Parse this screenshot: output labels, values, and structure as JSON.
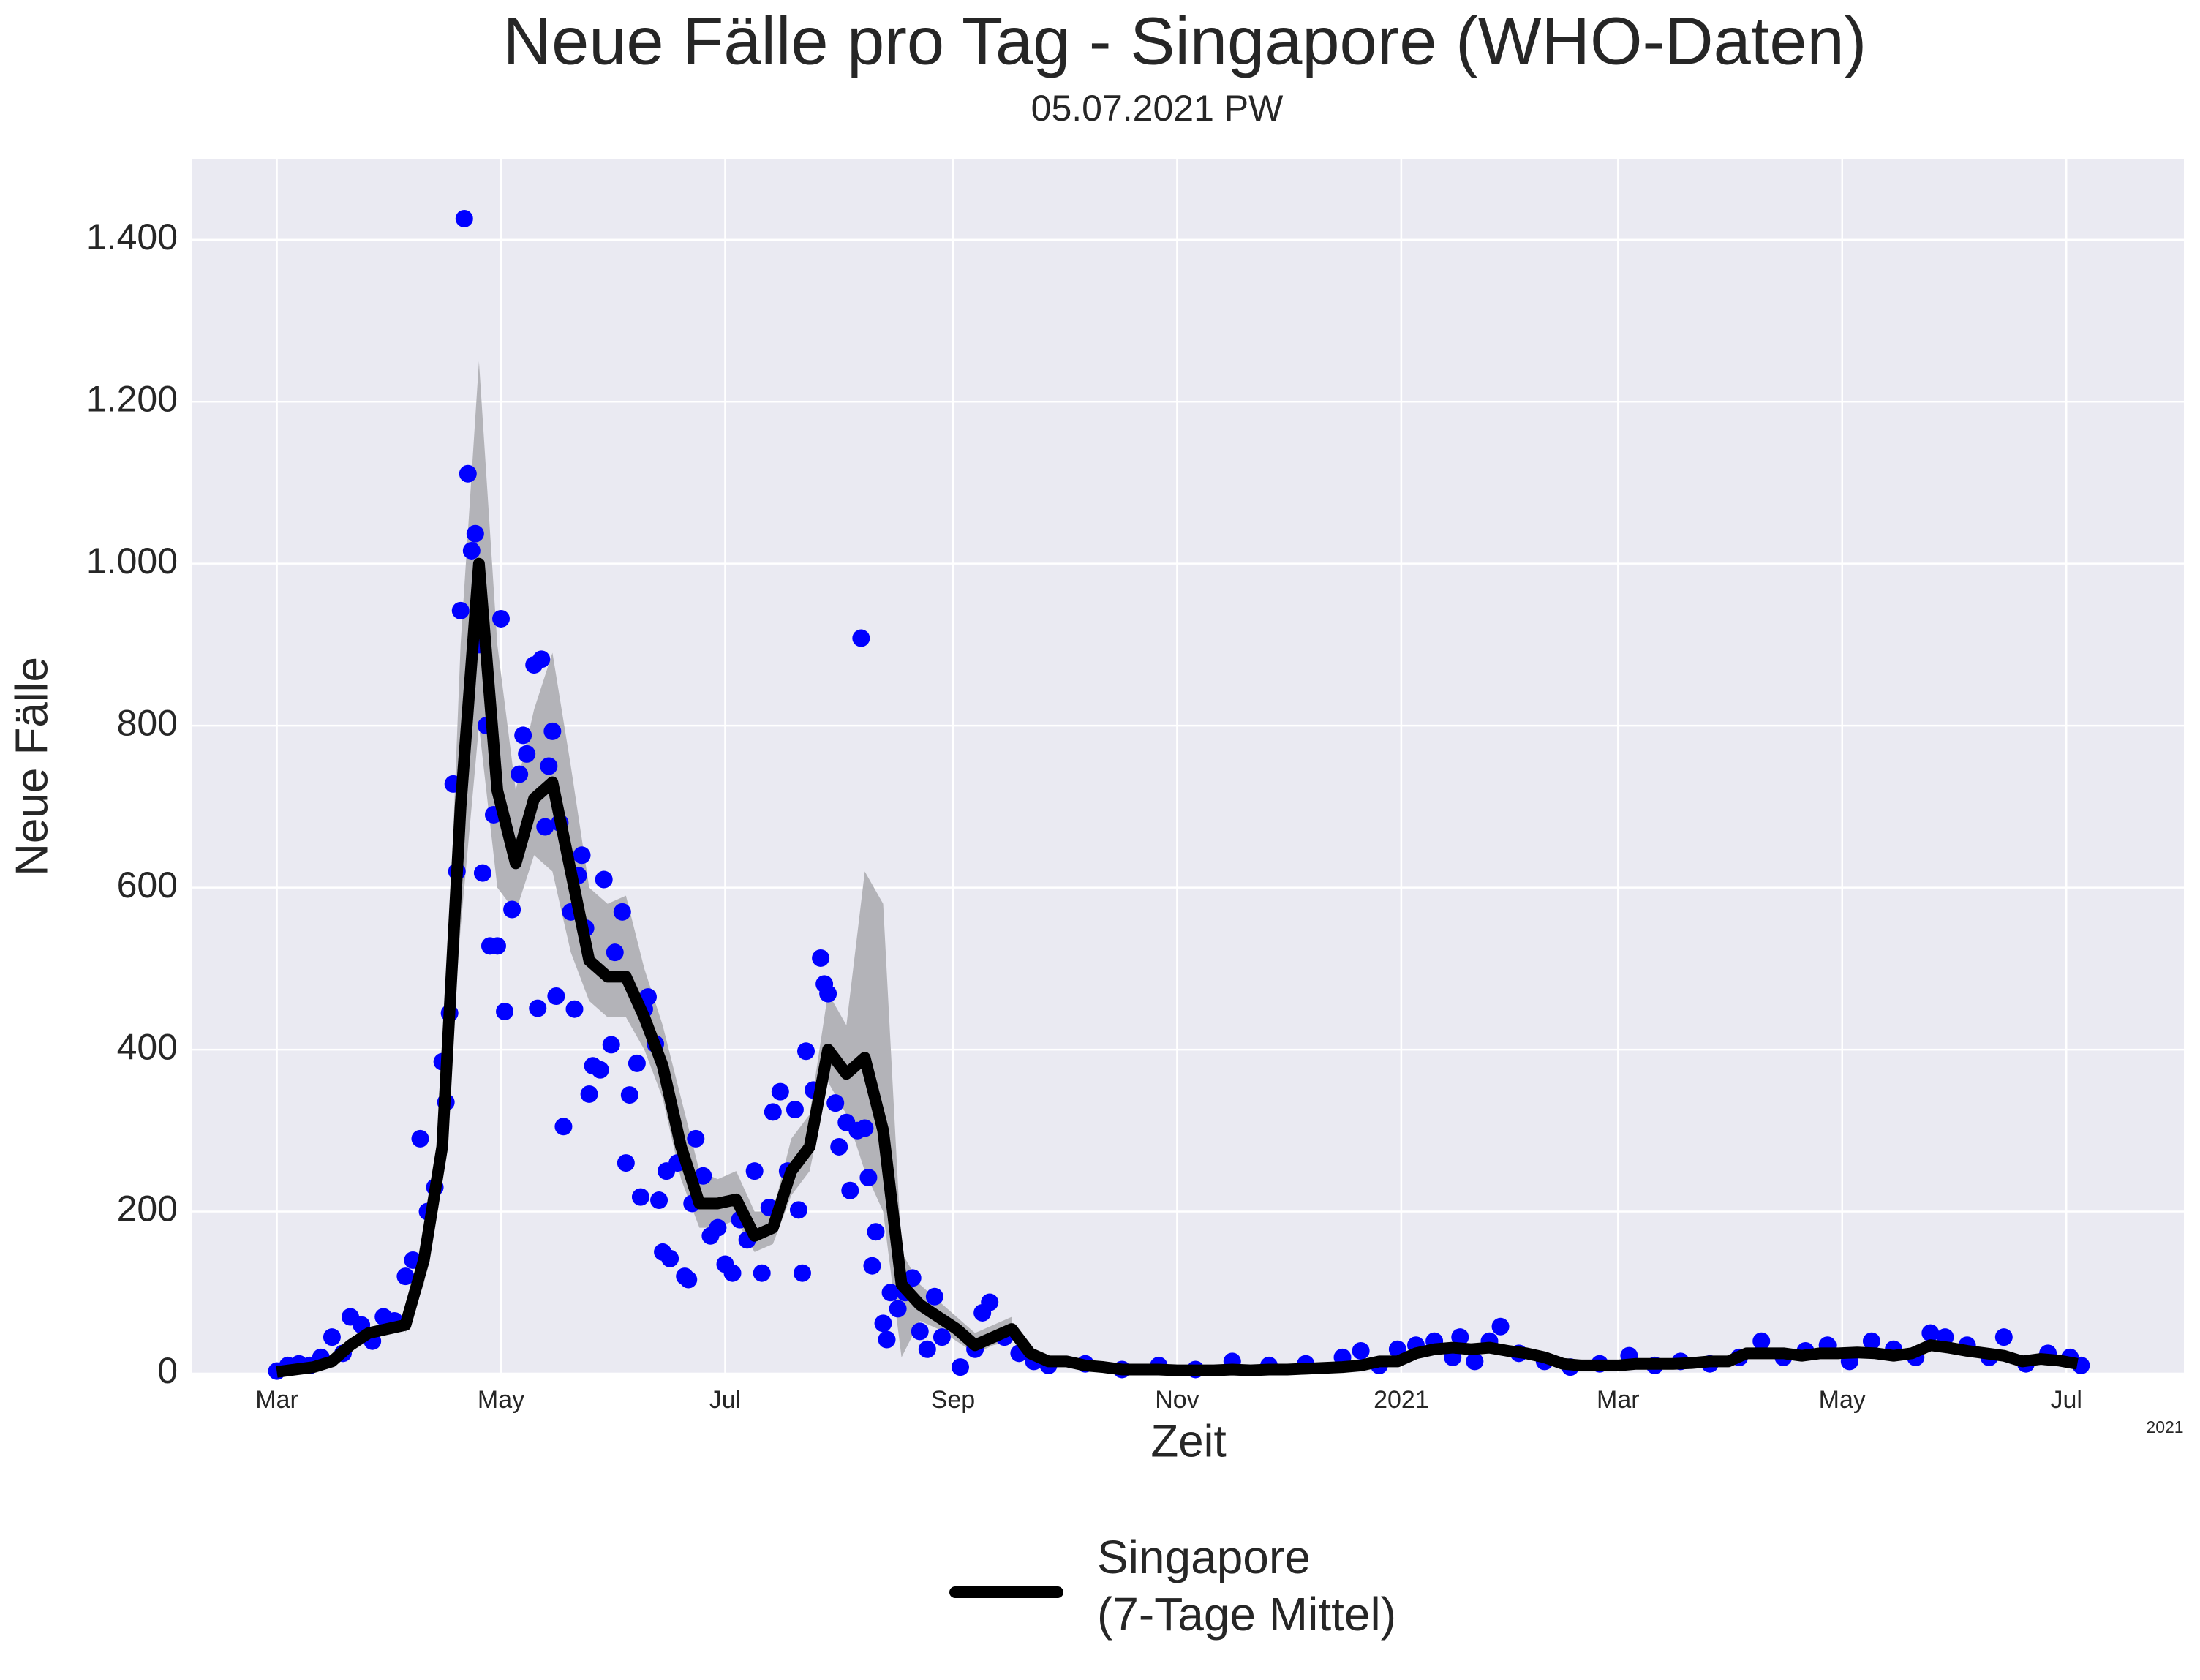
{
  "chart_data": {
    "type": "scatter-line",
    "title": "Neue Fälle pro Tag - Singapore (WHO-Daten)",
    "subtitle": "05.07.2021 PW",
    "x_label": "Zeit",
    "y_label": "Neue Fälle",
    "x_offset_label": "2021",
    "background": "#eaeaf2",
    "grid": true,
    "legend": "bottom",
    "xlim": [
      -23,
      519
    ],
    "xticks": [
      {
        "value": 0,
        "label": "Mar"
      },
      {
        "value": 61,
        "label": "May"
      },
      {
        "value": 122,
        "label": "Jul"
      },
      {
        "value": 184,
        "label": "Sep"
      },
      {
        "value": 245,
        "label": "Nov"
      },
      {
        "value": 306,
        "label": "2021"
      },
      {
        "value": 365,
        "label": "Mar"
      },
      {
        "value": 426,
        "label": "May"
      },
      {
        "value": 487,
        "label": "Jul"
      }
    ],
    "ylim": [
      0,
      1500
    ],
    "yticks": [
      0,
      200,
      400,
      600,
      800,
      {
        "value": 1000,
        "label": "1.000"
      },
      {
        "value": 1200,
        "label": "1.200"
      },
      {
        "value": 1400,
        "label": "1.400"
      }
    ],
    "band": {
      "color": "#b3b3b8",
      "x": [
        35,
        40,
        45,
        50,
        55,
        60,
        65,
        70,
        75,
        80,
        85,
        90,
        95,
        100,
        105,
        110,
        115,
        120,
        125,
        130,
        135,
        140,
        145,
        150,
        155,
        160,
        165,
        170,
        175,
        180,
        185,
        190,
        195,
        200
      ],
      "lower": [
        50,
        110,
        240,
        550,
        800,
        600,
        570,
        640,
        620,
        520,
        460,
        440,
        440,
        400,
        340,
        240,
        180,
        180,
        190,
        150,
        160,
        220,
        250,
        360,
        320,
        250,
        200,
        20,
        65,
        55,
        40,
        25,
        35,
        40
      ],
      "upper": [
        70,
        180,
        320,
        900,
        1250,
        900,
        720,
        820,
        890,
        750,
        600,
        580,
        590,
        500,
        430,
        340,
        250,
        240,
        250,
        200,
        200,
        290,
        320,
        470,
        430,
        620,
        580,
        150,
        110,
        90,
        70,
        50,
        60,
        70
      ]
    },
    "scatter": {
      "color": "#0000ff",
      "x": [
        0,
        3,
        6,
        9,
        12,
        15,
        18,
        20,
        23,
        26,
        29,
        32,
        35,
        37,
        39,
        41,
        43,
        45,
        46,
        47,
        48,
        49,
        50,
        51,
        52,
        53,
        54,
        55,
        56,
        57,
        58,
        59,
        60,
        61,
        62,
        64,
        66,
        67,
        68,
        70,
        71,
        72,
        73,
        74,
        75,
        76,
        77,
        78,
        80,
        81,
        82,
        83,
        84,
        85,
        86,
        88,
        89,
        91,
        92,
        94,
        95,
        96,
        98,
        99,
        100,
        101,
        103,
        104,
        105,
        106,
        107,
        109,
        111,
        112,
        113,
        114,
        116,
        118,
        120,
        122,
        124,
        126,
        128,
        130,
        132,
        134,
        135,
        137,
        139,
        141,
        142,
        143,
        144,
        146,
        148,
        149,
        150,
        152,
        153,
        155,
        156,
        158,
        159,
        160,
        161,
        162,
        163,
        165,
        166,
        167,
        169,
        171,
        173,
        175,
        177,
        179,
        181,
        186,
        190,
        192,
        194,
        198,
        202,
        206,
        210,
        220,
        230,
        240,
        250,
        260,
        270,
        280,
        290,
        295,
        300,
        305,
        310,
        315,
        320,
        322,
        326,
        330,
        333,
        338,
        345,
        352,
        360,
        368,
        375,
        382,
        390,
        398,
        404,
        410,
        416,
        422,
        428,
        434,
        440,
        446,
        450,
        454,
        460,
        466,
        470,
        476,
        482,
        488,
        491
      ],
      "values": [
        3,
        10,
        12,
        10,
        20,
        45,
        25,
        70,
        60,
        40,
        70,
        65,
        120,
        140,
        290,
        200,
        230,
        385,
        335,
        445,
        728,
        620,
        942,
        1426,
        1111,
        1016,
        1037,
        900,
        618,
        800,
        528,
        690,
        528,
        932,
        447,
        573,
        740,
        788,
        765,
        875,
        451,
        882,
        675,
        750,
        793,
        466,
        680,
        305,
        570,
        450,
        615,
        640,
        550,
        345,
        380,
        375,
        610,
        406,
        520,
        570,
        260,
        344,
        383,
        218,
        450,
        465,
        407,
        214,
        150,
        250,
        142,
        260,
        120,
        116,
        210,
        290,
        244,
        170,
        180,
        135,
        124,
        190,
        165,
        250,
        124,
        205,
        323,
        348,
        250,
        326,
        202,
        124,
        398,
        350,
        513,
        481,
        469,
        334,
        280,
        310,
        226,
        300,
        908,
        303,
        242,
        133,
        175,
        62,
        42,
        100,
        80,
        100,
        118,
        52,
        30,
        95,
        45,
        8,
        30,
        75,
        88,
        45,
        25,
        15,
        10,
        12,
        5,
        10,
        5,
        15,
        10,
        12,
        20,
        28,
        10,
        30,
        35,
        40,
        20,
        45,
        15,
        40,
        58,
        25,
        15,
        8,
        12,
        22,
        10,
        15,
        12,
        20,
        40,
        20,
        28,
        35,
        15,
        40,
        30,
        20,
        50,
        45,
        35,
        20,
        45,
        12,
        25,
        20,
        10
      ]
    },
    "series": [
      {
        "name": "Singapore\n(7-Tage Mittel)",
        "color": "#000000",
        "x": [
          0,
          5,
          10,
          15,
          20,
          25,
          30,
          35,
          40,
          45,
          50,
          55,
          60,
          65,
          70,
          75,
          80,
          85,
          90,
          95,
          100,
          105,
          110,
          115,
          120,
          125,
          130,
          135,
          140,
          145,
          150,
          155,
          160,
          165,
          170,
          175,
          180,
          185,
          190,
          195,
          200,
          205,
          210,
          215,
          220,
          225,
          230,
          235,
          240,
          245,
          250,
          255,
          260,
          265,
          270,
          275,
          280,
          285,
          290,
          295,
          300,
          305,
          310,
          315,
          320,
          325,
          330,
          335,
          340,
          345,
          350,
          355,
          360,
          365,
          370,
          375,
          380,
          385,
          390,
          395,
          400,
          405,
          410,
          415,
          420,
          425,
          430,
          435,
          440,
          445,
          450,
          455,
          460,
          465,
          470,
          475,
          480,
          485,
          490
        ],
        "values": [
          2,
          5,
          8,
          15,
          35,
          50,
          55,
          60,
          140,
          280,
          700,
          1000,
          720,
          630,
          710,
          730,
          620,
          510,
          490,
          490,
          440,
          380,
          280,
          210,
          210,
          215,
          170,
          180,
          250,
          280,
          400,
          370,
          390,
          300,
          110,
          85,
          70,
          55,
          35,
          45,
          55,
          25,
          15,
          15,
          10,
          8,
          5,
          5,
          5,
          4,
          4,
          4,
          5,
          4,
          5,
          5,
          6,
          7,
          8,
          10,
          15,
          15,
          25,
          30,
          32,
          30,
          32,
          28,
          25,
          20,
          12,
          10,
          10,
          10,
          12,
          12,
          12,
          13,
          15,
          15,
          25,
          25,
          25,
          22,
          25,
          25,
          26,
          25,
          22,
          25,
          35,
          32,
          28,
          25,
          22,
          15,
          18,
          16,
          12
        ]
      }
    ]
  }
}
